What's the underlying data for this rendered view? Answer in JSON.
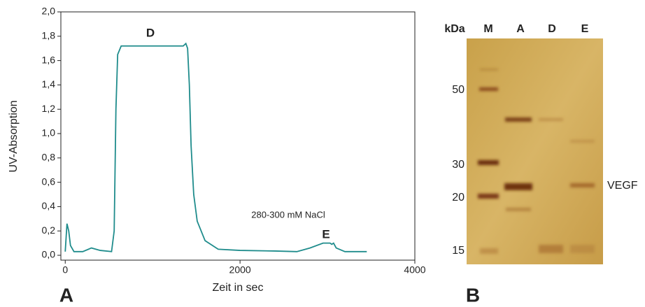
{
  "chart_data": {
    "type": "line",
    "x_label": "Zeit in sec",
    "y_label": "UV-Absorption",
    "annotations": [
      "D",
      "E",
      "280-300 mM NaCl"
    ],
    "x": [
      0,
      20,
      40,
      60,
      100,
      200,
      300,
      400,
      530,
      560,
      580,
      600,
      640,
      1000,
      1350,
      1380,
      1400,
      1420,
      1440,
      1470,
      1510,
      1600,
      1750,
      2000,
      2400,
      2650,
      2800,
      2950,
      3030,
      3050,
      3070,
      3100,
      3200,
      3450
    ],
    "values": [
      0.03,
      0.26,
      0.2,
      0.08,
      0.03,
      0.03,
      0.06,
      0.04,
      0.03,
      0.2,
      1.2,
      1.65,
      1.72,
      1.72,
      1.72,
      1.74,
      1.7,
      1.4,
      0.9,
      0.5,
      0.28,
      0.12,
      0.05,
      0.04,
      0.035,
      0.03,
      0.06,
      0.1,
      0.1,
      0.09,
      0.1,
      0.06,
      0.03,
      0.03
    ],
    "color": "#1f8c8c",
    "xlim": [
      -50,
      4000
    ],
    "xticks": [
      0,
      2000,
      4000
    ],
    "ylim": [
      -0.04,
      2.0
    ],
    "yticks": [
      {
        "value": 0,
        "label": "0,0"
      },
      {
        "value": 0.2,
        "label": "0,2"
      },
      {
        "value": 0.4,
        "label": "0,4"
      },
      {
        "value": 0.6,
        "label": "0,6"
      },
      {
        "value": 0.8,
        "label": "0,8"
      },
      {
        "value": 1.0,
        "label": "1,0"
      },
      {
        "value": 1.2,
        "label": "1,2"
      },
      {
        "value": 1.4,
        "label": "1,4"
      },
      {
        "value": 1.6,
        "label": "1,6"
      },
      {
        "value": 1.8,
        "label": "1,8"
      },
      {
        "value": 2.0,
        "label": "2,0"
      }
    ],
    "grid": false
  },
  "gel": {
    "header": "kDa",
    "lanes": [
      "M",
      "A",
      "D",
      "E"
    ],
    "markers": [
      50,
      30,
      20,
      15
    ],
    "band_label": "VEGF"
  },
  "panel_labels": [
    "A",
    "B"
  ]
}
